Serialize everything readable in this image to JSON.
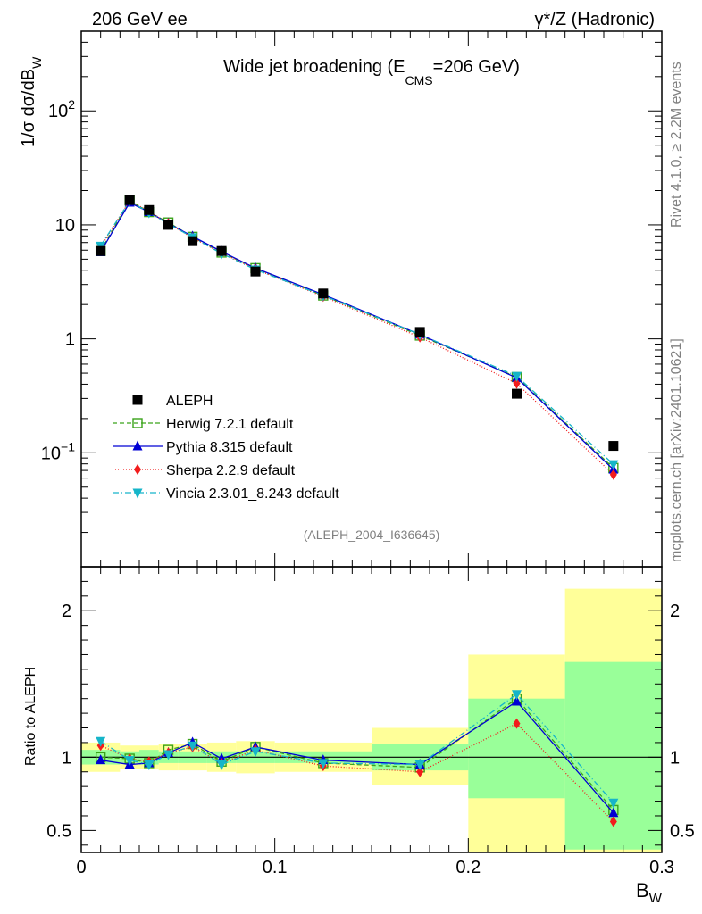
{
  "header": {
    "left": "206 GeV ee",
    "right_prefix": "γ",
    "right_suffix": "*/Z (Hadronic)"
  },
  "side_text": {
    "top": "Rivet 4.1.0, ≥ 2.2M events",
    "bottom": "mcplots.cern.ch [arXiv:2401.10621]"
  },
  "chart_data": {
    "type": "line",
    "title_main": "Wide jet broadening (E",
    "title_sub": "CMS",
    "title_end": "=206 GeV)",
    "analysis_id": "(ALEPH_2004_I636645)",
    "ylabel_main": "1/σ  dσ/dB",
    "ylabel_sub": "W",
    "xlabel_main": "B",
    "xlabel_sub": "W",
    "ratio_ylabel": "Ratio to ALEPH",
    "xlim": [
      0,
      0.3
    ],
    "ylim_main": [
      0.01,
      500
    ],
    "ylim_ratio": [
      0.35,
      2.3
    ],
    "x_ticks": [
      {
        "v": 0,
        "label": "0"
      },
      {
        "v": 0.1,
        "label": "0.1"
      },
      {
        "v": 0.2,
        "label": "0.2"
      },
      {
        "v": 0.3,
        "label": "0.3"
      }
    ],
    "y_ticks_main": [
      {
        "v": 0.1,
        "base": "10",
        "exp": "−1"
      },
      {
        "v": 1,
        "base": "1",
        "exp": ""
      },
      {
        "v": 10,
        "base": "10",
        "exp": ""
      },
      {
        "v": 100,
        "base": "10",
        "exp": "2"
      }
    ],
    "y_ticks_ratio": [
      {
        "v": 0.5,
        "label": "0.5"
      },
      {
        "v": 1,
        "label": "1"
      },
      {
        "v": 2,
        "label": "2"
      }
    ],
    "bin_edges": [
      0,
      0.02,
      0.03,
      0.04,
      0.05,
      0.065,
      0.08,
      0.1,
      0.15,
      0.2,
      0.25,
      0.3
    ],
    "x": [
      0.01,
      0.025,
      0.035,
      0.045,
      0.0575,
      0.0725,
      0.09,
      0.125,
      0.175,
      0.225,
      0.275
    ],
    "data": {
      "name": "ALEPH",
      "values": [
        5.9,
        16.5,
        13.5,
        10.0,
        7.2,
        5.9,
        3.9,
        2.5,
        1.15,
        0.33,
        0.115
      ]
    },
    "band_stat": [
      [
        0.95,
        1.05
      ],
      [
        0.96,
        1.04
      ],
      [
        0.95,
        1.05
      ],
      [
        0.96,
        1.04
      ],
      [
        0.96,
        1.04
      ],
      [
        0.96,
        1.04
      ],
      [
        0.96,
        1.04
      ],
      [
        0.96,
        1.04
      ],
      [
        0.91,
        1.09
      ],
      [
        0.72,
        1.4
      ],
      [
        0.37,
        1.65
      ]
    ],
    "band_total": [
      [
        0.9,
        1.1
      ],
      [
        0.92,
        1.08
      ],
      [
        0.92,
        1.08
      ],
      [
        0.91,
        1.09
      ],
      [
        0.91,
        1.09
      ],
      [
        0.9,
        1.1
      ],
      [
        0.89,
        1.11
      ],
      [
        0.9,
        1.1
      ],
      [
        0.81,
        1.2
      ],
      [
        0.35,
        1.7
      ],
      [
        0.35,
        2.15
      ]
    ],
    "series": [
      {
        "name": "Herwig 7.2.1 default",
        "color": "#3aa31a",
        "marker": "open-square",
        "dash": "5,3",
        "ratio": [
          1.0,
          0.99,
          0.96,
          1.05,
          1.09,
          0.97,
          1.07,
          0.96,
          0.93,
          1.4,
          0.64
        ]
      },
      {
        "name": "Pythia 8.315 default",
        "color": "#0000d4",
        "marker": "triangle-up",
        "dash": "",
        "ratio": [
          0.98,
          0.95,
          0.96,
          1.03,
          1.1,
          0.99,
          1.07,
          0.98,
          0.95,
          1.38,
          0.62
        ]
      },
      {
        "name": "Sherpa 2.2.9 default",
        "color": "#f21c1c",
        "marker": "diamond",
        "dash": "1,2",
        "ratio": [
          1.08,
          0.99,
          0.97,
          1.03,
          1.07,
          0.96,
          1.05,
          0.94,
          0.9,
          1.23,
          0.56
        ]
      },
      {
        "name": "Vincia 2.3.01_8.243 default",
        "color": "#16b5c9",
        "marker": "triangle-down",
        "dash": "7,3,1,3",
        "ratio": [
          1.11,
          0.98,
          0.95,
          1.02,
          1.08,
          0.95,
          1.04,
          0.96,
          0.95,
          1.43,
          0.69
        ]
      }
    ]
  }
}
